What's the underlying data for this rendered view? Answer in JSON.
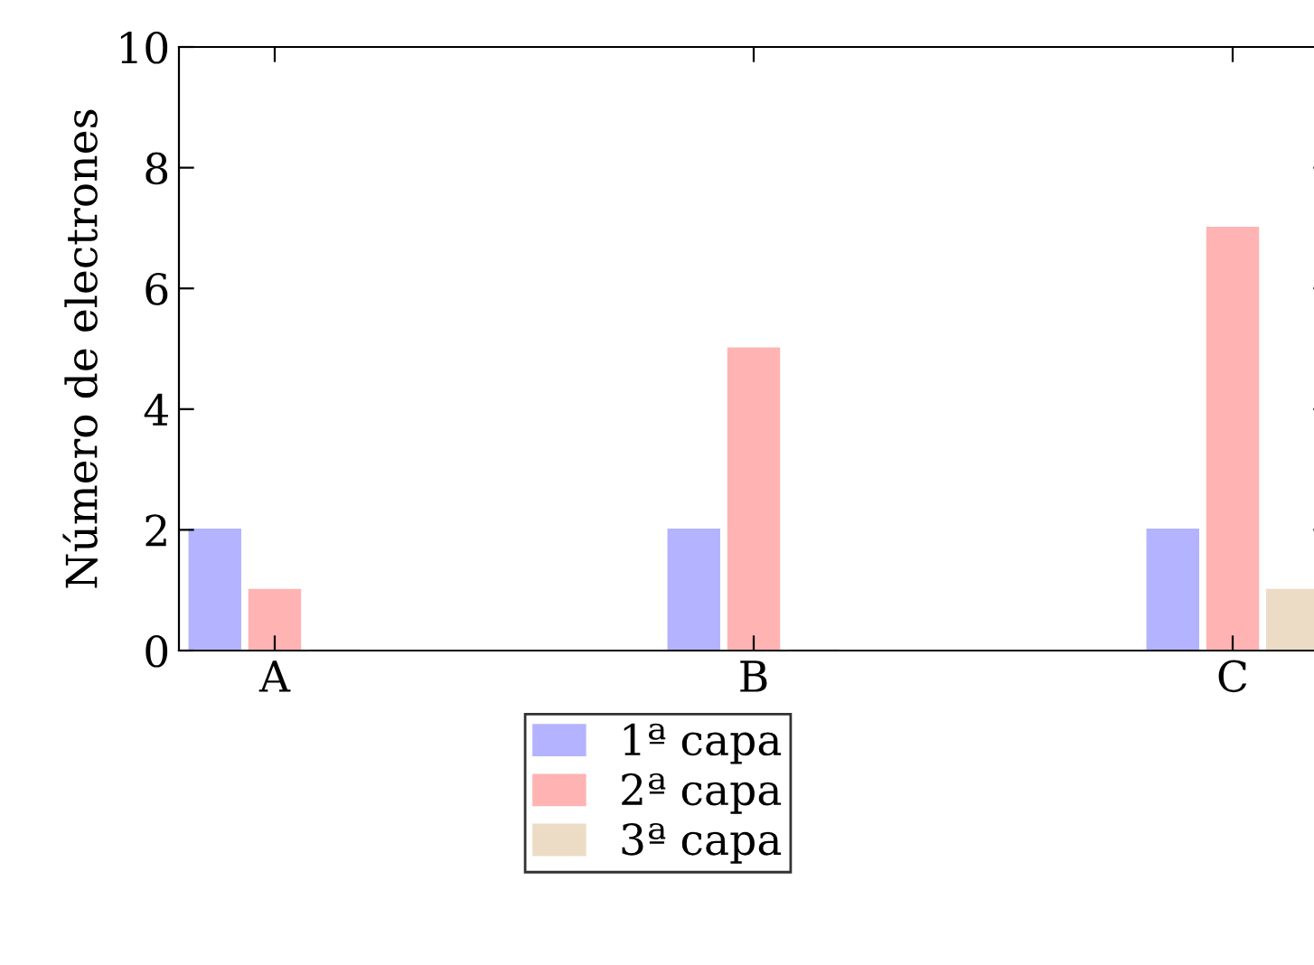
{
  "chart_data": {
    "type": "bar",
    "ylabel": "Número de electrones",
    "categories": [
      "A",
      "B",
      "C"
    ],
    "series": [
      {
        "name": "1ª capa",
        "color": "#b3b3ff",
        "values": [
          2,
          2,
          2
        ]
      },
      {
        "name": "2ª capa",
        "color": "#ffb3b3",
        "values": [
          1,
          5,
          7
        ]
      },
      {
        "name": "3ª capa",
        "color": "#ecdcc6",
        "values": [
          0,
          0,
          1
        ]
      }
    ],
    "ylim": [
      0,
      10
    ],
    "yticks": [
      0,
      2,
      4,
      6,
      8,
      10
    ],
    "grid": false,
    "legend": "bottom"
  }
}
